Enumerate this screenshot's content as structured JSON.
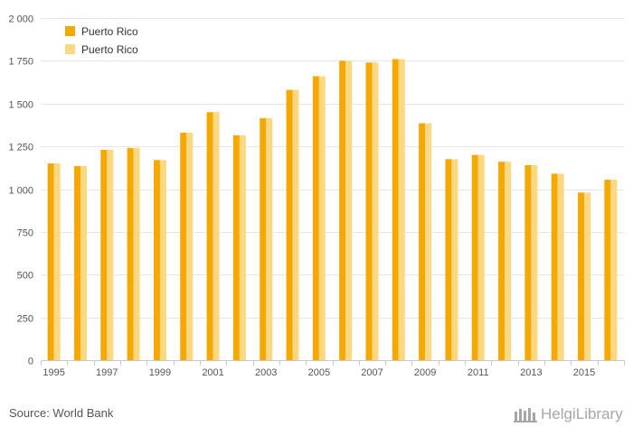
{
  "chart_data": {
    "type": "bar",
    "categories": [
      "1995",
      "1996",
      "1997",
      "1998",
      "1999",
      "2000",
      "2001",
      "2002",
      "2003",
      "2004",
      "2005",
      "2006",
      "2007",
      "2008",
      "2009",
      "2010",
      "2011",
      "2012",
      "2013",
      "2014",
      "2015",
      "2016"
    ],
    "x_tick_labels": [
      "1995",
      "1997",
      "1999",
      "2001",
      "2003",
      "2005",
      "2007",
      "2009",
      "2011",
      "2013",
      "2015"
    ],
    "series": [
      {
        "name": "Puerto Rico",
        "color": "#f5a800",
        "values": [
          1150,
          1135,
          1230,
          1240,
          1170,
          1330,
          1450,
          1315,
          1415,
          1580,
          1660,
          1750,
          1740,
          1760,
          1385,
          1175,
          1200,
          1160,
          1140,
          1090,
          980,
          1055
        ]
      },
      {
        "name": "Puerto Rico",
        "color": "#fcd882",
        "values": [
          1150,
          1135,
          1230,
          1240,
          1170,
          1330,
          1450,
          1315,
          1415,
          1580,
          1660,
          1750,
          1740,
          1760,
          1385,
          1175,
          1200,
          1160,
          1140,
          1090,
          980,
          1055
        ]
      }
    ],
    "ylim": [
      0,
      2000
    ],
    "y_ticks": [
      0,
      250,
      500,
      750,
      1000,
      1250,
      1500,
      1750,
      2000
    ],
    "y_tick_labels": [
      "0",
      "250",
      "500",
      "750",
      "1 000",
      "1 250",
      "1 500",
      "1 750",
      "2 000"
    ],
    "grid": true,
    "legend_position": "top-left",
    "xlabel": "",
    "ylabel": ""
  },
  "footer": {
    "source": "Source: World Bank",
    "logo_text": "HelgiLibrary"
  }
}
